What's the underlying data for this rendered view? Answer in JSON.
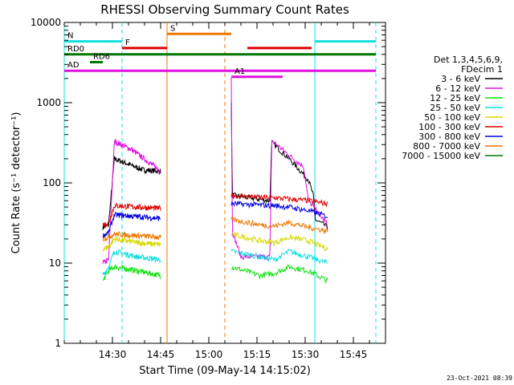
{
  "chart_data": {
    "type": "line",
    "title": "RHESSI Observing Summary Count Rates",
    "xlabel": "Start Time (09-May-14 14:15:02)",
    "ylabel": "Count Rate (s⁻¹ detector⁻¹)",
    "yscale": "log",
    "ylim": [
      1,
      10000
    ],
    "xlim": [
      "14:15",
      "15:55"
    ],
    "xticks": [
      "14:30",
      "14:45",
      "15:00",
      "15:15",
      "15:30",
      "15:45"
    ],
    "yticks": [
      "1",
      "10",
      "100",
      "1000",
      "10000"
    ],
    "legend": {
      "placement": "right",
      "header": [
        "Det 1,3,4,5,6,9,",
        "FDecim 1"
      ],
      "entries": [
        {
          "label": "3 - 6 keV",
          "color": "#000000"
        },
        {
          "label": "6 - 12 keV",
          "color": "#e010e0"
        },
        {
          "label": "12 - 25 keV",
          "color": "#10e010"
        },
        {
          "label": "25 - 50 keV",
          "color": "#10e0e0"
        },
        {
          "label": "50 - 100 keV",
          "color": "#d8d800"
        },
        {
          "label": "100 - 300 keV",
          "color": "#e00000"
        },
        {
          "label": "300 - 800 keV",
          "color": "#0000e0"
        },
        {
          "label": "800 - 7000 keV",
          "color": "#f07800"
        },
        {
          "label": "7000 - 15000 keV",
          "color": "#007800"
        }
      ]
    },
    "segments": [
      {
        "start": "14:27",
        "end": "14:45"
      },
      {
        "start": "15:07",
        "end": "15:37"
      }
    ],
    "series": [
      {
        "name": "3 - 6 keV",
        "color": "#000000",
        "a": [
          [
            0.0,
            28
          ],
          [
            0.1,
            30
          ],
          [
            0.2,
            200
          ],
          [
            0.45,
            170
          ],
          [
            0.7,
            145
          ],
          [
            1.0,
            140
          ]
        ],
        "b": [
          [
            0.0,
            1000
          ],
          [
            0.01,
            70
          ],
          [
            0.2,
            65
          ],
          [
            0.4,
            60
          ],
          [
            0.42,
            320
          ],
          [
            0.6,
            200
          ],
          [
            0.8,
            110
          ],
          [
            0.85,
            70
          ],
          [
            0.87,
            35
          ],
          [
            1.0,
            28
          ]
        ]
      },
      {
        "name": "6 - 12 keV",
        "color": "#e010e0",
        "a": [
          [
            0.0,
            10
          ],
          [
            0.1,
            11
          ],
          [
            0.2,
            330
          ],
          [
            0.5,
            260
          ],
          [
            0.8,
            180
          ],
          [
            1.0,
            140
          ]
        ],
        "b": [
          [
            0.0,
            2000
          ],
          [
            0.01,
            25
          ],
          [
            0.1,
            12
          ],
          [
            0.4,
            12
          ],
          [
            0.42,
            340
          ],
          [
            0.6,
            220
          ],
          [
            0.75,
            160
          ],
          [
            0.8,
            60
          ],
          [
            1.0,
            30
          ]
        ]
      },
      {
        "name": "12 - 25 keV",
        "color": "#10e010",
        "a": [
          [
            0.0,
            6
          ],
          [
            0.1,
            8
          ],
          [
            0.2,
            9
          ],
          [
            0.6,
            8
          ],
          [
            1.0,
            7
          ]
        ],
        "b": [
          [
            0.0,
            9
          ],
          [
            0.3,
            7
          ],
          [
            0.45,
            7.5
          ],
          [
            0.6,
            9
          ],
          [
            0.8,
            8
          ],
          [
            1.0,
            6
          ]
        ]
      },
      {
        "name": "25 - 50 keV",
        "color": "#10e0e0",
        "a": [
          [
            0.0,
            7
          ],
          [
            0.1,
            9
          ],
          [
            0.2,
            14
          ],
          [
            0.6,
            12
          ],
          [
            1.0,
            11
          ]
        ],
        "b": [
          [
            0.0,
            14
          ],
          [
            0.3,
            12
          ],
          [
            0.45,
            11
          ],
          [
            0.6,
            14
          ],
          [
            0.8,
            12
          ],
          [
            1.0,
            10
          ]
        ]
      },
      {
        "name": "50 - 100 keV",
        "color": "#d8d800",
        "a": [
          [
            0.0,
            15
          ],
          [
            0.1,
            16
          ],
          [
            0.2,
            20
          ],
          [
            0.6,
            18
          ],
          [
            1.0,
            17
          ]
        ],
        "b": [
          [
            0.0,
            23
          ],
          [
            0.3,
            19
          ],
          [
            0.45,
            18
          ],
          [
            0.6,
            21
          ],
          [
            0.8,
            19
          ],
          [
            1.0,
            15
          ]
        ]
      },
      {
        "name": "100 - 300 keV",
        "color": "#e00000",
        "a": [
          [
            0.0,
            30
          ],
          [
            0.1,
            32
          ],
          [
            0.2,
            52
          ],
          [
            0.6,
            50
          ],
          [
            1.0,
            48
          ]
        ],
        "b": [
          [
            0.0,
            70
          ],
          [
            0.3,
            66
          ],
          [
            0.45,
            65
          ],
          [
            0.6,
            63
          ],
          [
            0.8,
            60
          ],
          [
            1.0,
            55
          ]
        ]
      },
      {
        "name": "300 - 800 keV",
        "color": "#0000e0",
        "a": [
          [
            0.0,
            22
          ],
          [
            0.1,
            24
          ],
          [
            0.2,
            40
          ],
          [
            0.6,
            38
          ],
          [
            1.0,
            36
          ]
        ],
        "b": [
          [
            0.0,
            55
          ],
          [
            0.3,
            53
          ],
          [
            0.45,
            52
          ],
          [
            0.6,
            50
          ],
          [
            0.8,
            45
          ],
          [
            1.0,
            38
          ]
        ]
      },
      {
        "name": "800 - 7000 keV",
        "color": "#f07800",
        "a": [
          [
            0.0,
            20
          ],
          [
            0.1,
            21
          ],
          [
            0.2,
            23
          ],
          [
            0.6,
            22
          ],
          [
            1.0,
            21
          ]
        ],
        "b": [
          [
            0.0,
            35
          ],
          [
            0.3,
            30
          ],
          [
            0.45,
            29
          ],
          [
            0.6,
            32
          ],
          [
            0.8,
            28
          ],
          [
            1.0,
            25
          ]
        ]
      }
    ],
    "annotations": [
      {
        "label": "N",
        "color": "#10e0e0",
        "start": "14:15",
        "end": "14:33",
        "level": 5800
      },
      {
        "label": "",
        "color": "#10e0e0",
        "start": "15:33",
        "end": "15:52",
        "level": 5800
      },
      {
        "label": "S",
        "color": "#f07800",
        "start": "14:47",
        "end": "15:07",
        "level": 7200
      },
      {
        "label": "F",
        "color": "#e00000",
        "start": "14:33",
        "end": "14:47",
        "level": 4800
      },
      {
        "label": "",
        "color": "#e00000",
        "start": "15:12",
        "end": "15:32",
        "level": 4800
      },
      {
        "label": "RD0",
        "color": "#007800",
        "start": "14:15",
        "end": "15:52",
        "level": 4000
      },
      {
        "label": "RD6",
        "color": "#007800",
        "start": "14:23",
        "end": "14:27",
        "level": 3200
      },
      {
        "label": "AD",
        "color": "#e010e0",
        "start": "14:15",
        "end": "15:52",
        "level": 2500
      },
      {
        "label": "A1",
        "color": "#e010e0",
        "start": "15:07",
        "end": "15:23",
        "level": 2100
      }
    ],
    "vlines": [
      {
        "time": "14:15",
        "color": "#10e0e0",
        "style": "solid"
      },
      {
        "time": "14:33",
        "color": "#10e0e0",
        "style": "dashed"
      },
      {
        "time": "14:47",
        "color": "#f07800",
        "style": "solid"
      },
      {
        "time": "15:05",
        "color": "#f07800",
        "style": "dashed"
      },
      {
        "time": "15:33",
        "color": "#10e0e0",
        "style": "solid"
      },
      {
        "time": "15:52",
        "color": "#10e0e0",
        "style": "dashed"
      }
    ],
    "footer_date": "23-Oct-2021 08:39"
  }
}
